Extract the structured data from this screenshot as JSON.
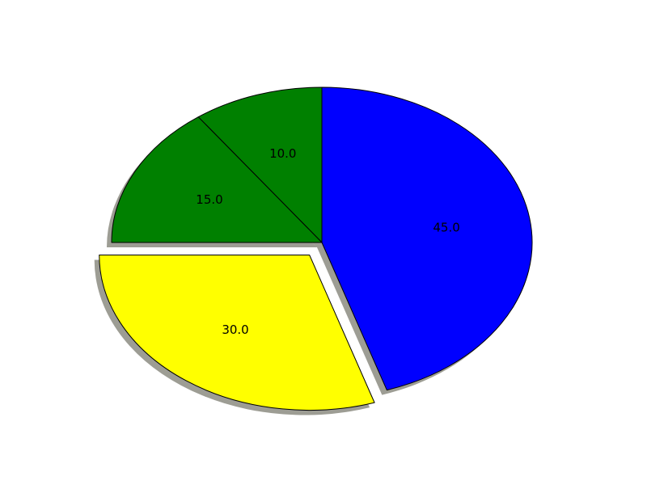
{
  "chart_data": {
    "type": "pie",
    "title": "",
    "start_angle_deg": 90,
    "direction": "counterclockwise",
    "shadow": true,
    "edge_color": "#000000",
    "slices": [
      {
        "value": 10,
        "label": "10.0",
        "color": "#008000",
        "exploded": false
      },
      {
        "value": 15,
        "label": "15.0",
        "color": "#008000",
        "exploded": false
      },
      {
        "value": 30,
        "label": "30.0",
        "color": "#FFFF00",
        "exploded": true
      },
      {
        "value": 45,
        "label": "45.0",
        "color": "#0000FF",
        "exploded": false
      }
    ]
  }
}
